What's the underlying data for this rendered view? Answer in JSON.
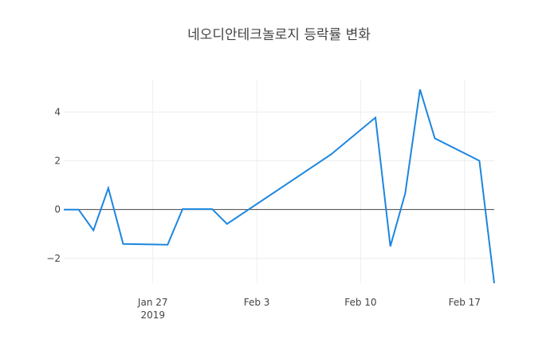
{
  "chart_data": {
    "type": "line",
    "title": "네오디안테크놀로지 등락률 변화",
    "x": [
      "2019-01-21",
      "2019-01-22",
      "2019-01-23",
      "2019-01-24",
      "2019-01-25",
      "2019-01-28",
      "2019-01-29",
      "2019-01-31",
      "2019-02-01",
      "2019-02-08",
      "2019-02-11",
      "2019-02-12",
      "2019-02-13",
      "2019-02-14",
      "2019-02-15",
      "2019-02-18",
      "2019-02-19"
    ],
    "series": [
      {
        "name": "등락률",
        "color": "#1c86e0",
        "values": [
          0,
          0,
          -0.85,
          0.88,
          -1.41,
          -1.44,
          0.02,
          0.02,
          -0.59,
          2.26,
          3.77,
          -1.51,
          0.66,
          4.92,
          2.92,
          2.0,
          -3.02
        ]
      }
    ],
    "xlim": [
      "2019-01-21",
      "2019-02-19"
    ],
    "xticks": [
      {
        "value": "2019-01-27",
        "label": "Jan 27",
        "sublabel": "2019"
      },
      {
        "value": "2019-02-03",
        "label": "Feb 3"
      },
      {
        "value": "2019-02-10",
        "label": "Feb 10"
      },
      {
        "value": "2019-02-17",
        "label": "Feb 17"
      }
    ],
    "ylim": [
      -3.02,
      5.32
    ],
    "yticks": [
      {
        "value": -2,
        "label": "−2"
      },
      0,
      2,
      4
    ],
    "grid": true
  }
}
